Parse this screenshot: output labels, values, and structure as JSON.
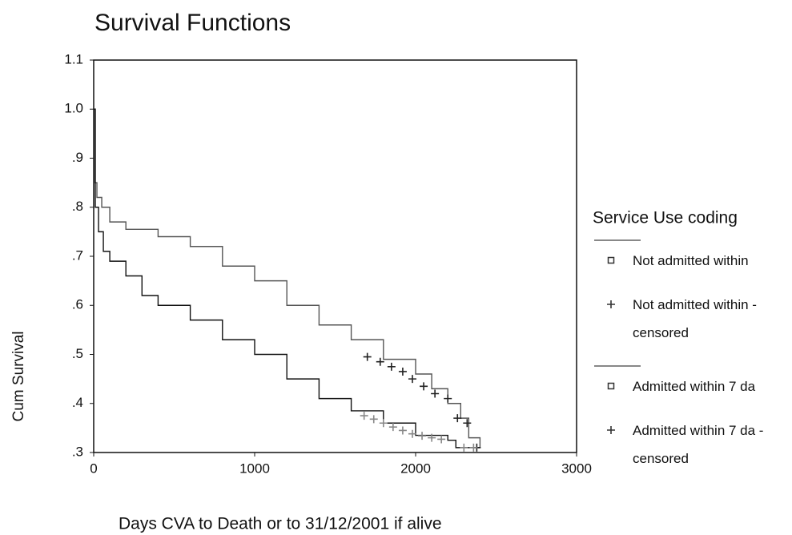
{
  "chart_data": {
    "type": "line",
    "step": true,
    "title": "Survival Functions",
    "x_label": "Days CVA to Death or to 31/12/2001 if alive",
    "y_label": "Cum Survival",
    "legend_title": "Service Use coding",
    "legend": "right",
    "xlim": [
      0,
      3000
    ],
    "xticks": [
      0,
      1000,
      2000,
      3000
    ],
    "ylim": [
      0.3,
      1.1
    ],
    "yticks": [
      {
        "value": 0.3,
        "label": ".3"
      },
      {
        "value": 0.4,
        "label": ".4"
      },
      {
        "value": 0.5,
        "label": ".5"
      },
      {
        "value": 0.6,
        "label": ".6"
      },
      {
        "value": 0.7,
        "label": ".7"
      },
      {
        "value": 0.8,
        "label": ".8"
      },
      {
        "value": 0.9,
        "label": ".9"
      },
      {
        "value": 1.0,
        "label": "1.0"
      },
      1.1
    ],
    "series": [
      {
        "name": "Not admitted within",
        "marker": "square",
        "color": "#555555",
        "x": [
          0,
          5,
          20,
          50,
          100,
          200,
          400,
          600,
          800,
          1000,
          1200,
          1400,
          1600,
          1800,
          2000,
          2100,
          2200,
          2280,
          2330,
          2400
        ],
        "values": [
          1.0,
          0.85,
          0.82,
          0.8,
          0.77,
          0.755,
          0.74,
          0.72,
          0.68,
          0.65,
          0.6,
          0.56,
          0.53,
          0.49,
          0.46,
          0.43,
          0.4,
          0.37,
          0.33,
          0.31
        ]
      },
      {
        "name": "Not admitted within -censored",
        "marker": "plus",
        "type": "scatter",
        "color": "#222222",
        "x": [
          1700,
          1780,
          1850,
          1920,
          1980,
          2050,
          2120,
          2200,
          2260,
          2320,
          2380
        ],
        "values": [
          0.495,
          0.485,
          0.475,
          0.465,
          0.45,
          0.435,
          0.42,
          0.41,
          0.37,
          0.36,
          0.31
        ]
      },
      {
        "name": "Admitted within 7 da",
        "marker": "square",
        "color": "#111111",
        "x": [
          0,
          10,
          30,
          60,
          100,
          200,
          300,
          400,
          600,
          800,
          1000,
          1200,
          1400,
          1600,
          1800,
          2000,
          2200,
          2250,
          2400
        ],
        "values": [
          1.0,
          0.8,
          0.75,
          0.71,
          0.69,
          0.66,
          0.62,
          0.6,
          0.57,
          0.53,
          0.5,
          0.45,
          0.41,
          0.385,
          0.36,
          0.335,
          0.325,
          0.31,
          0.31
        ]
      },
      {
        "name": "Admitted within 7 da -censored",
        "marker": "plus",
        "type": "scatter",
        "color": "#888888",
        "x": [
          1680,
          1740,
          1800,
          1860,
          1920,
          1980,
          2040,
          2100,
          2160,
          2300,
          2360
        ],
        "values": [
          0.375,
          0.368,
          0.36,
          0.352,
          0.345,
          0.338,
          0.334,
          0.33,
          0.327,
          0.31,
          0.31
        ]
      }
    ]
  }
}
